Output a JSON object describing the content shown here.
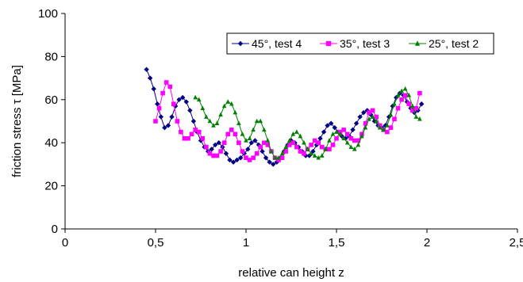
{
  "chart_data": {
    "type": "line",
    "title": "",
    "xlabel": "relative can height z",
    "ylabel": "friction stress τ [MPa]",
    "xlim": [
      0,
      2.5
    ],
    "ylim": [
      0,
      100
    ],
    "x_ticks": [
      {
        "value": 0,
        "label": "0"
      },
      {
        "value": 0.5,
        "label": "0,5"
      },
      {
        "value": 1,
        "label": "1"
      },
      {
        "value": 1.5,
        "label": "1,5"
      },
      {
        "value": 2,
        "label": "2"
      },
      {
        "value": 2.5,
        "label": "2,5"
      }
    ],
    "y_ticks": [
      {
        "value": 0,
        "label": "0"
      },
      {
        "value": 20,
        "label": "20"
      },
      {
        "value": 40,
        "label": "40"
      },
      {
        "value": 60,
        "label": "60"
      },
      {
        "value": 80,
        "label": "80"
      },
      {
        "value": 100,
        "label": "100"
      }
    ],
    "grid": false,
    "legend": {
      "placement": "top-right",
      "orientation": "horizontal"
    },
    "series": [
      {
        "name": "45°, test 4",
        "color": "#000080",
        "marker": "diamond",
        "x": [
          0.45,
          0.47,
          0.49,
          0.51,
          0.53,
          0.55,
          0.57,
          0.59,
          0.61,
          0.63,
          0.65,
          0.67,
          0.69,
          0.71,
          0.73,
          0.75,
          0.77,
          0.79,
          0.81,
          0.83,
          0.85,
          0.87,
          0.89,
          0.91,
          0.93,
          0.95,
          0.97,
          0.99,
          1.01,
          1.03,
          1.05,
          1.07,
          1.09,
          1.11,
          1.13,
          1.15,
          1.17,
          1.19,
          1.21,
          1.23,
          1.25,
          1.27,
          1.29,
          1.31,
          1.33,
          1.35,
          1.37,
          1.39,
          1.41,
          1.43,
          1.45,
          1.47,
          1.49,
          1.51,
          1.53,
          1.55,
          1.57,
          1.59,
          1.61,
          1.63,
          1.65,
          1.67,
          1.69,
          1.71,
          1.73,
          1.75,
          1.77,
          1.79,
          1.81,
          1.83,
          1.85,
          1.87,
          1.89,
          1.91,
          1.93,
          1.95,
          1.97
        ],
        "y": [
          74,
          70,
          65,
          58,
          52,
          47,
          48,
          52,
          57,
          60,
          61,
          59,
          55,
          50,
          45,
          41,
          38,
          36,
          37,
          39,
          40,
          38,
          35,
          32,
          31,
          32,
          33,
          35,
          37,
          40,
          41,
          39,
          36,
          33,
          31,
          30,
          31,
          33,
          36,
          39,
          41,
          40,
          38,
          36,
          34,
          34,
          36,
          39,
          42,
          45,
          48,
          49,
          47,
          45,
          43,
          42,
          43,
          46,
          49,
          52,
          54,
          55,
          53,
          50,
          48,
          47,
          48,
          52,
          57,
          61,
          63,
          62,
          59,
          56,
          54,
          55,
          58
        ]
      },
      {
        "name": "35°, test 3",
        "color": "#ff00ff",
        "marker": "square",
        "x": [
          0.5,
          0.52,
          0.54,
          0.56,
          0.58,
          0.6,
          0.62,
          0.64,
          0.66,
          0.68,
          0.7,
          0.72,
          0.74,
          0.76,
          0.78,
          0.8,
          0.82,
          0.84,
          0.86,
          0.88,
          0.9,
          0.92,
          0.94,
          0.96,
          0.98,
          1.0,
          1.02,
          1.04,
          1.06,
          1.08,
          1.1,
          1.12,
          1.14,
          1.16,
          1.18,
          1.2,
          1.22,
          1.24,
          1.26,
          1.28,
          1.3,
          1.32,
          1.34,
          1.36,
          1.38,
          1.4,
          1.42,
          1.44,
          1.46,
          1.48,
          1.5,
          1.52,
          1.54,
          1.56,
          1.58,
          1.6,
          1.62,
          1.64,
          1.66,
          1.68,
          1.7,
          1.72,
          1.74,
          1.76,
          1.78,
          1.8,
          1.82,
          1.84,
          1.86,
          1.88,
          1.9,
          1.92,
          1.94,
          1.96
        ],
        "y": [
          50,
          56,
          63,
          68,
          66,
          58,
          50,
          45,
          42,
          42,
          44,
          46,
          45,
          42,
          38,
          35,
          34,
          34,
          36,
          40,
          44,
          46,
          44,
          40,
          36,
          33,
          32,
          33,
          35,
          38,
          40,
          39,
          36,
          33,
          32,
          33,
          36,
          39,
          40,
          38,
          36,
          35,
          37,
          39,
          41,
          40,
          38,
          37,
          37,
          39,
          42,
          45,
          46,
          44,
          42,
          41,
          41,
          44,
          49,
          54,
          55,
          52,
          48,
          46,
          45,
          47,
          51,
          56,
          60,
          62,
          58,
          55,
          56,
          63
        ]
      },
      {
        "name": "25°, test 2",
        "color": "#008000",
        "marker": "triangle",
        "x": [
          0.72,
          0.74,
          0.76,
          0.78,
          0.8,
          0.82,
          0.84,
          0.86,
          0.88,
          0.9,
          0.92,
          0.94,
          0.96,
          0.98,
          1.0,
          1.02,
          1.04,
          1.06,
          1.08,
          1.1,
          1.12,
          1.14,
          1.16,
          1.18,
          1.2,
          1.22,
          1.24,
          1.26,
          1.28,
          1.3,
          1.32,
          1.34,
          1.36,
          1.38,
          1.4,
          1.42,
          1.44,
          1.46,
          1.48,
          1.5,
          1.52,
          1.54,
          1.56,
          1.58,
          1.6,
          1.62,
          1.64,
          1.66,
          1.68,
          1.7,
          1.72,
          1.74,
          1.76,
          1.78,
          1.8,
          1.82,
          1.84,
          1.86,
          1.88,
          1.9,
          1.92,
          1.94,
          1.96
        ],
        "y": [
          61,
          60,
          56,
          52,
          50,
          48,
          49,
          53,
          57,
          59,
          58,
          54,
          49,
          44,
          41,
          42,
          46,
          50,
          50,
          46,
          41,
          36,
          33,
          33,
          35,
          38,
          41,
          44,
          45,
          43,
          40,
          37,
          35,
          34,
          33,
          34,
          37,
          41,
          44,
          45,
          44,
          42,
          40,
          38,
          37,
          39,
          43,
          47,
          51,
          52,
          50,
          47,
          46,
          48,
          53,
          58,
          62,
          64,
          65,
          62,
          57,
          52,
          51
        ]
      }
    ]
  }
}
